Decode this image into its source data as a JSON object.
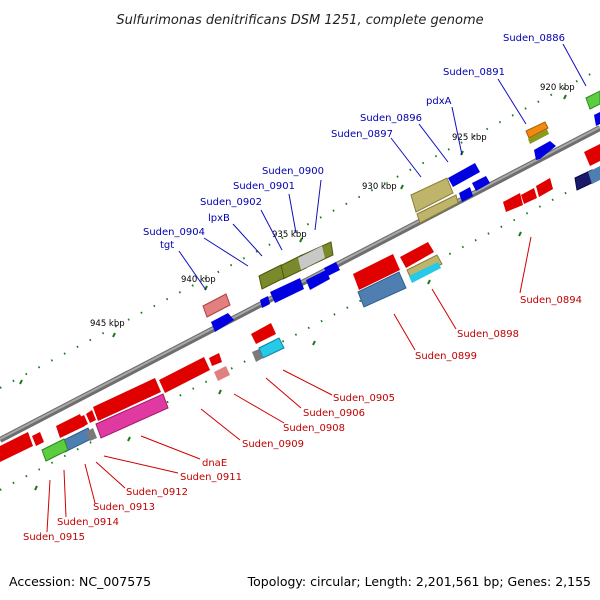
{
  "title": "Sulfurimonas denitrificans DSM 1251, complete genome",
  "footer": {
    "accession": "Accession: NC_007575",
    "summary": "Topology: circular; Length: 2,201,561 bp; Genes: 2,155"
  },
  "kbp_marks": [
    "920 kbp",
    "925 kbp",
    "930 kbp",
    "935 kbp",
    "940 kbp",
    "945 kbp"
  ],
  "forward_labels": [
    "Suden_0886",
    "Suden_0891",
    "pdxA",
    "Suden_0896",
    "Suden_0897",
    "Suden_0900",
    "Suden_0901",
    "Suden_0902",
    "lpxB",
    "Suden_0904",
    "tgt"
  ],
  "reverse_labels": [
    "Suden_0894",
    "Suden_0898",
    "Suden_0899",
    "Suden_0905",
    "Suden_0906",
    "Suden_0908",
    "Suden_0909",
    "dnaE",
    "Suden_0911",
    "Suden_0912",
    "Suden_0913",
    "Suden_0914",
    "Suden_0915"
  ],
  "colors": {
    "forward_label": "#0000b0",
    "reverse_label": "#c00000",
    "backbone": "#7a7a7a",
    "tick": "#1a7a1a",
    "blue_gene": "#0000e0",
    "red_gene": "#e00000",
    "olive_gene": "#7a8a2a",
    "khaki_gene": "#bfb56a",
    "steel_gene": "#4f7fb0",
    "pink_gene": "#e03aa0",
    "green_gene": "#5ccc40",
    "cyan_gene": "#27c9e8",
    "orange_gene": "#f08a10",
    "salmon_gene": "#e28080"
  }
}
